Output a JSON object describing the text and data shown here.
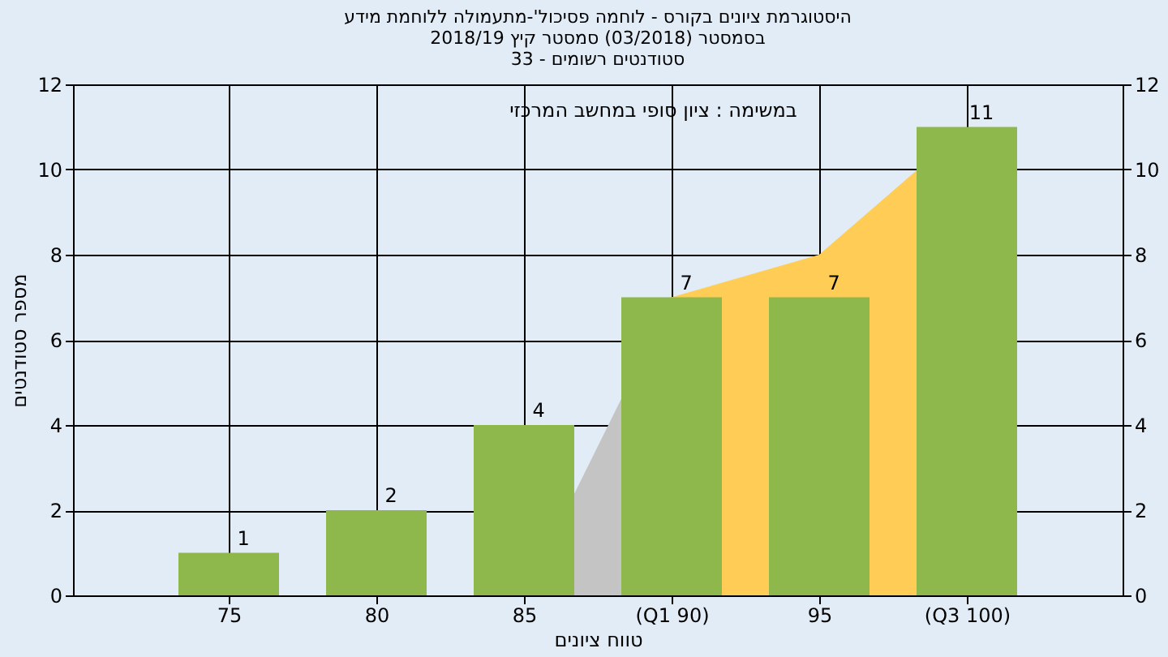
{
  "chart_data": {
    "type": "bar",
    "title": [
      "היסטוגרמת ציונים בקורס - לוחמה פסיכול'-מתעמולה ללוחמת מידע",
      "בסמסטר (03/2018) סמסטר קיץ 2018/19",
      "סטודנטים רשומים - 33"
    ],
    "xlabel": "טווח ציונים",
    "ylabel": "מספר סטודנטים",
    "annotations": [
      "במשימה : ציון סופי במחשב המרכזי"
    ],
    "categories": [
      "75",
      "80",
      "85",
      "(Q1 90)",
      "95",
      "(Q3 100)"
    ],
    "series": [
      {
        "type": "area",
        "color": "#c4c4c4",
        "values": [
          null,
          null,
          0,
          7,
          null,
          null
        ]
      },
      {
        "type": "area",
        "color": "#ffcc55",
        "values": [
          null,
          null,
          null,
          7,
          8,
          11
        ]
      },
      {
        "color": "#8fb84c",
        "values": [
          1,
          2,
          4,
          7,
          7,
          11
        ],
        "value_labels": [
          "1",
          "2",
          "4",
          "7",
          "7",
          "11"
        ]
      }
    ],
    "ylim": [
      0,
      12
    ],
    "yticks": [
      0,
      2,
      4,
      6,
      8,
      10,
      12
    ],
    "y2lim": [
      0,
      12
    ],
    "y2ticks": [
      0,
      2,
      4,
      6,
      8,
      10,
      12
    ],
    "grid": true
  }
}
